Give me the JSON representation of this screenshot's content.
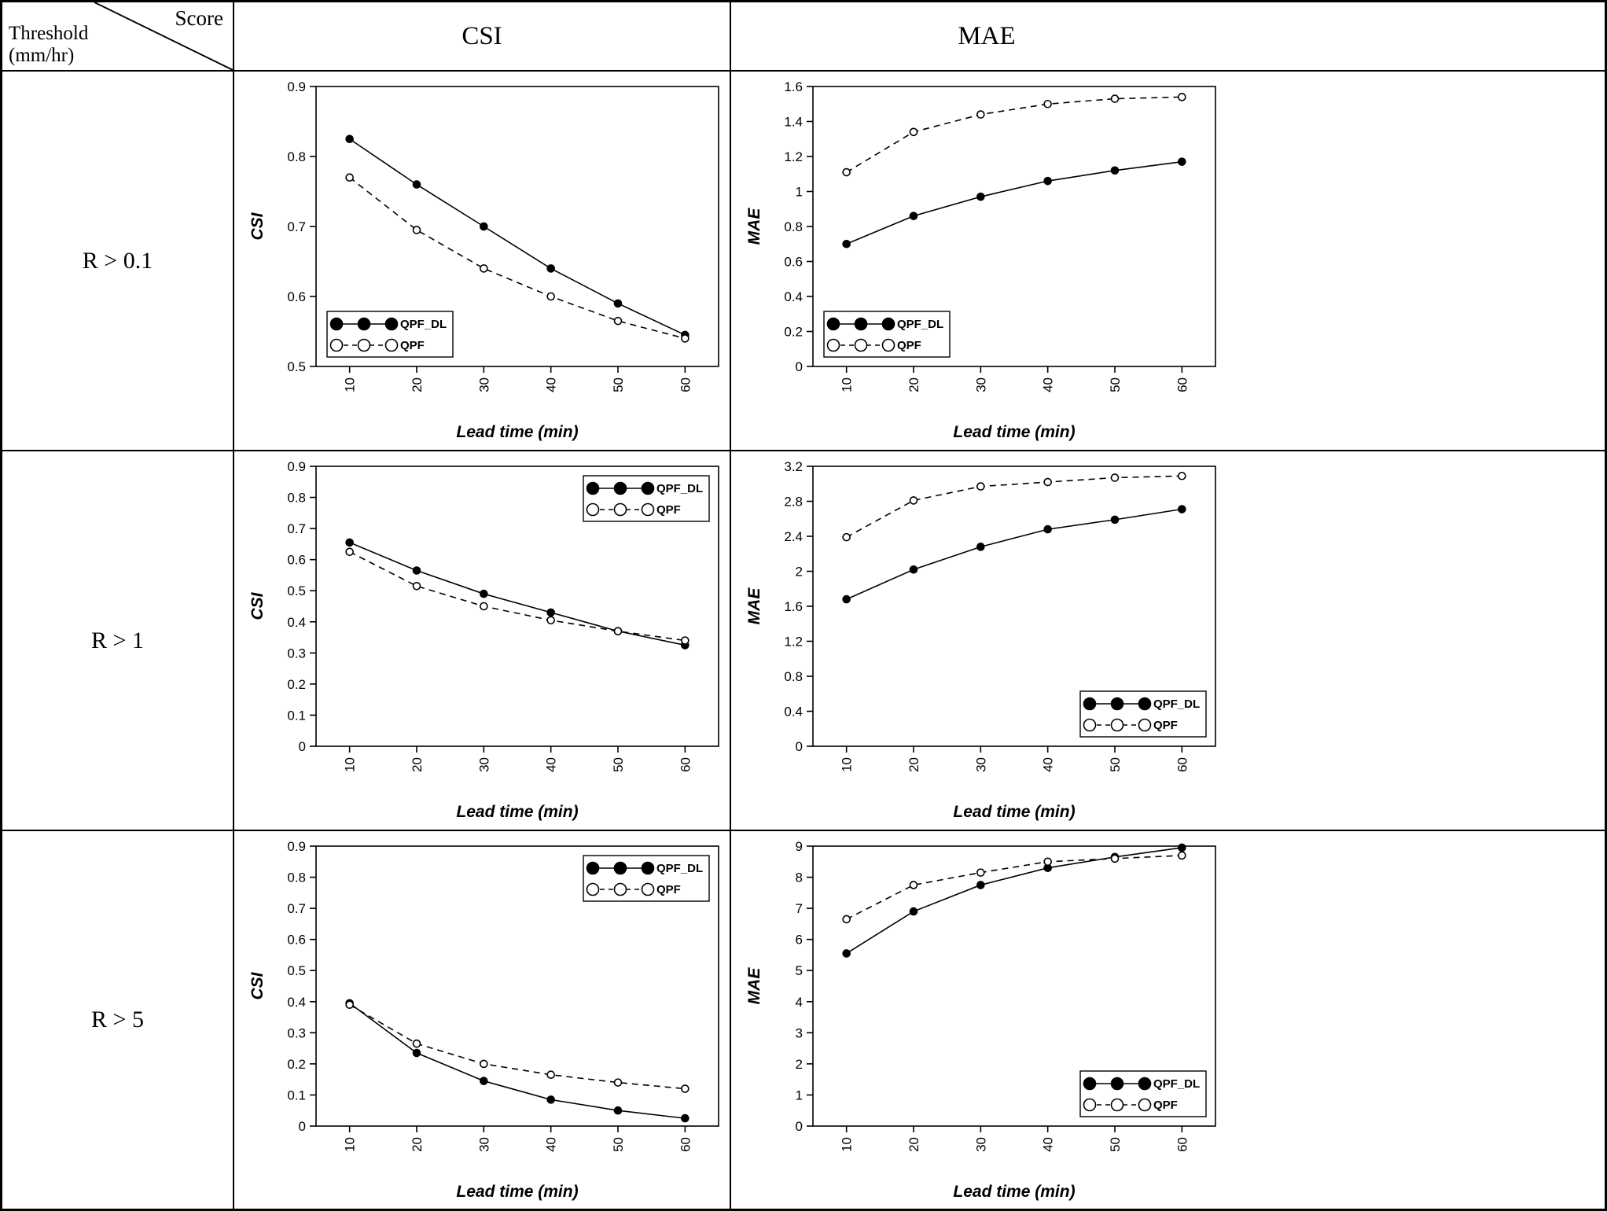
{
  "table": {
    "corner": {
      "score": "Score",
      "threshold_line1": "Threshold",
      "threshold_line2": "(mm/hr)"
    },
    "columns": [
      "CSI",
      "MAE"
    ],
    "rows": [
      {
        "label": "R > 0.1"
      },
      {
        "label": "R > 1"
      },
      {
        "label": "R > 5"
      }
    ]
  },
  "legend": {
    "series": [
      "QPF_DL",
      "QPF"
    ]
  },
  "chart_data": [
    {
      "type": "line",
      "row_label": "R > 0.1",
      "metric": "CSI",
      "x": [
        10,
        20,
        30,
        40,
        50,
        60
      ],
      "xlabel": "Lead time (min)",
      "ylabel": "CSI",
      "ylim": [
        0.5,
        0.9
      ],
      "ytick": 0.1,
      "legend_position": "bottom-left",
      "series": [
        {
          "name": "QPF_DL",
          "style": "solid-filled",
          "values": [
            0.825,
            0.76,
            0.7,
            0.64,
            0.59,
            0.545
          ]
        },
        {
          "name": "QPF",
          "style": "dashed-open",
          "values": [
            0.77,
            0.695,
            0.64,
            0.6,
            0.565,
            0.54
          ]
        }
      ]
    },
    {
      "type": "line",
      "row_label": "R > 0.1",
      "metric": "MAE",
      "x": [
        10,
        20,
        30,
        40,
        50,
        60
      ],
      "xlabel": "Lead time (min)",
      "ylabel": "MAE",
      "ylim": [
        0,
        1.6
      ],
      "ytick": 0.2,
      "legend_position": "bottom-left",
      "series": [
        {
          "name": "QPF_DL",
          "style": "solid-filled",
          "values": [
            0.7,
            0.86,
            0.97,
            1.06,
            1.12,
            1.17
          ]
        },
        {
          "name": "QPF",
          "style": "dashed-open",
          "values": [
            1.11,
            1.34,
            1.44,
            1.5,
            1.53,
            1.54
          ]
        }
      ]
    },
    {
      "type": "line",
      "row_label": "R > 1",
      "metric": "CSI",
      "x": [
        10,
        20,
        30,
        40,
        50,
        60
      ],
      "xlabel": "Lead time (min)",
      "ylabel": "CSI",
      "ylim": [
        0,
        0.9
      ],
      "ytick": 0.1,
      "legend_position": "top-right",
      "series": [
        {
          "name": "QPF_DL",
          "style": "solid-filled",
          "values": [
            0.655,
            0.565,
            0.49,
            0.43,
            0.37,
            0.325
          ]
        },
        {
          "name": "QPF",
          "style": "dashed-open",
          "values": [
            0.625,
            0.515,
            0.45,
            0.405,
            0.37,
            0.34
          ]
        }
      ]
    },
    {
      "type": "line",
      "row_label": "R > 1",
      "metric": "MAE",
      "x": [
        10,
        20,
        30,
        40,
        50,
        60
      ],
      "xlabel": "Lead time (min)",
      "ylabel": "MAE",
      "ylim": [
        0,
        3.2
      ],
      "ytick": 0.4,
      "legend_position": "bottom-right",
      "series": [
        {
          "name": "QPF_DL",
          "style": "solid-filled",
          "values": [
            1.68,
            2.02,
            2.28,
            2.48,
            2.59,
            2.71
          ]
        },
        {
          "name": "QPF",
          "style": "dashed-open",
          "values": [
            2.39,
            2.81,
            2.97,
            3.02,
            3.07,
            3.09
          ]
        }
      ]
    },
    {
      "type": "line",
      "row_label": "R > 5",
      "metric": "CSI",
      "x": [
        10,
        20,
        30,
        40,
        50,
        60
      ],
      "xlabel": "Lead time (min)",
      "ylabel": "CSI",
      "ylim": [
        0,
        0.9
      ],
      "ytick": 0.1,
      "legend_position": "top-right",
      "series": [
        {
          "name": "QPF_DL",
          "style": "solid-filled",
          "values": [
            0.395,
            0.235,
            0.145,
            0.085,
            0.05,
            0.025
          ]
        },
        {
          "name": "QPF",
          "style": "dashed-open",
          "values": [
            0.39,
            0.265,
            0.2,
            0.165,
            0.14,
            0.12
          ]
        }
      ]
    },
    {
      "type": "line",
      "row_label": "R > 5",
      "metric": "MAE",
      "x": [
        10,
        20,
        30,
        40,
        50,
        60
      ],
      "xlabel": "Lead time (min)",
      "ylabel": "MAE",
      "ylim": [
        0,
        9
      ],
      "ytick": 1,
      "legend_position": "bottom-right",
      "series": [
        {
          "name": "QPF_DL",
          "style": "solid-filled",
          "values": [
            5.55,
            6.9,
            7.75,
            8.3,
            8.65,
            8.95
          ]
        },
        {
          "name": "QPF",
          "style": "dashed-open",
          "values": [
            6.65,
            7.75,
            8.15,
            8.5,
            8.6,
            8.7
          ]
        }
      ]
    }
  ]
}
